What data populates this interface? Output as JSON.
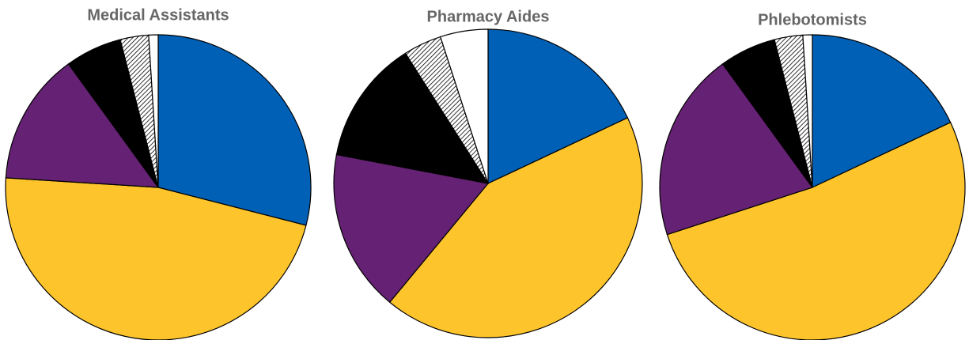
{
  "chart_data": [
    {
      "type": "pie",
      "title": "Medical Assistants",
      "values": [
        29,
        47,
        14,
        6,
        3,
        1
      ],
      "fills": [
        "#0060b6",
        "#fdc42c",
        "#652173",
        "#000000",
        "hatch",
        "#ffffff"
      ]
    },
    {
      "type": "pie",
      "title": "Pharmacy Aides",
      "values": [
        18,
        43,
        17,
        13,
        4,
        5
      ],
      "fills": [
        "#0060b6",
        "#fdc42c",
        "#652173",
        "#000000",
        "hatch",
        "#ffffff"
      ]
    },
    {
      "type": "pie",
      "title": "Phlebotomists",
      "values": [
        18,
        52,
        20,
        6,
        3,
        1
      ],
      "fills": [
        "#0060b6",
        "#fdc42c",
        "#652173",
        "#000000",
        "hatch",
        "#ffffff"
      ]
    }
  ]
}
